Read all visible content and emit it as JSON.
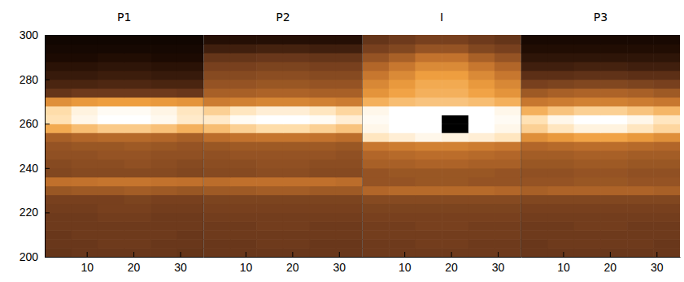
{
  "chart_data": [
    {
      "type": "heatmap",
      "title": "P1",
      "xlim": [
        1,
        35
      ],
      "xticks": [
        10,
        20,
        30
      ],
      "ylim": [
        200,
        300
      ],
      "yticks": [
        200,
        220,
        240,
        260,
        280,
        300
      ],
      "zlim": [
        0,
        100
      ],
      "x_edges": [
        1,
        6.7,
        12.3,
        18,
        23.7,
        29.3,
        35
      ],
      "y_edges": [
        200,
        204,
        208,
        212,
        216,
        220,
        224,
        228,
        232,
        236,
        240,
        244,
        248,
        252,
        256,
        260,
        264,
        268,
        272,
        276,
        280,
        284,
        288,
        292,
        296,
        300
      ],
      "z": [
        [
          26,
          27,
          27,
          27,
          27,
          26
        ],
        [
          27,
          27,
          28,
          28,
          27,
          27
        ],
        [
          27,
          28,
          28,
          28,
          28,
          27
        ],
        [
          28,
          28,
          28,
          28,
          28,
          28
        ],
        [
          28,
          28,
          29,
          29,
          28,
          28
        ],
        [
          29,
          29,
          30,
          30,
          29,
          29
        ],
        [
          30,
          30,
          30,
          31,
          30,
          30
        ],
        [
          37,
          38,
          38,
          39,
          38,
          37
        ],
        [
          45,
          46,
          47,
          47,
          46,
          45
        ],
        [
          32,
          33,
          33,
          33,
          33,
          32
        ],
        [
          33,
          34,
          34,
          35,
          34,
          33
        ],
        [
          35,
          35,
          36,
          36,
          35,
          35
        ],
        [
          36,
          37,
          37,
          38,
          37,
          36
        ],
        [
          40,
          42,
          43,
          43,
          42,
          40
        ],
        [
          68,
          74,
          78,
          78,
          75,
          70
        ],
        [
          86,
          96,
          100,
          100,
          97,
          90
        ],
        [
          84,
          94,
          98,
          98,
          95,
          88
        ],
        [
          58,
          62,
          64,
          64,
          62,
          60
        ],
        [
          26,
          28,
          28,
          28,
          28,
          27
        ],
        [
          20,
          20,
          21,
          21,
          20,
          20
        ],
        [
          16,
          16,
          17,
          17,
          16,
          16
        ],
        [
          13,
          13,
          14,
          14,
          13,
          13
        ],
        [
          10,
          10,
          11,
          11,
          10,
          10
        ],
        [
          8,
          8,
          8,
          8,
          8,
          8
        ],
        [
          6,
          6,
          6,
          6,
          6,
          6
        ]
      ]
    },
    {
      "type": "heatmap",
      "title": "P2",
      "xlim": [
        1,
        35
      ],
      "xticks": [
        10,
        20,
        30
      ],
      "ylim": [
        200,
        300
      ],
      "zlim": [
        0,
        100
      ],
      "x_edges": [
        1,
        6.7,
        12.3,
        18,
        23.7,
        29.3,
        35
      ],
      "y_edges": [
        200,
        204,
        208,
        212,
        216,
        220,
        224,
        228,
        232,
        236,
        240,
        244,
        248,
        252,
        256,
        260,
        264,
        268,
        272,
        276,
        280,
        284,
        288,
        292,
        296,
        300
      ],
      "z": [
        [
          27,
          27,
          27,
          27,
          27,
          27
        ],
        [
          27,
          27,
          28,
          28,
          27,
          27
        ],
        [
          28,
          28,
          28,
          28,
          28,
          28
        ],
        [
          28,
          28,
          29,
          29,
          28,
          28
        ],
        [
          29,
          29,
          29,
          29,
          29,
          29
        ],
        [
          30,
          30,
          30,
          30,
          30,
          30
        ],
        [
          31,
          31,
          31,
          31,
          31,
          31
        ],
        [
          38,
          38,
          39,
          39,
          38,
          38
        ],
        [
          44,
          45,
          45,
          45,
          45,
          44
        ],
        [
          33,
          33,
          34,
          34,
          33,
          33
        ],
        [
          34,
          34,
          35,
          35,
          34,
          34
        ],
        [
          35,
          36,
          36,
          36,
          36,
          35
        ],
        [
          37,
          38,
          38,
          38,
          38,
          37
        ],
        [
          44,
          46,
          47,
          47,
          46,
          44
        ],
        [
          74,
          80,
          84,
          84,
          80,
          76
        ],
        [
          90,
          98,
          100,
          100,
          98,
          92
        ],
        [
          80,
          88,
          92,
          92,
          88,
          82
        ],
        [
          50,
          52,
          54,
          54,
          52,
          50
        ],
        [
          40,
          40,
          41,
          41,
          40,
          40
        ],
        [
          36,
          36,
          37,
          37,
          36,
          36
        ],
        [
          33,
          33,
          34,
          34,
          33,
          33
        ],
        [
          30,
          30,
          31,
          31,
          30,
          30
        ],
        [
          26,
          26,
          27,
          27,
          26,
          26
        ],
        [
          18,
          18,
          19,
          19,
          18,
          18
        ],
        [
          12,
          12,
          12,
          12,
          12,
          12
        ]
      ]
    },
    {
      "type": "heatmap",
      "title": "I",
      "xlim": [
        1,
        35
      ],
      "xticks": [
        10,
        20,
        30
      ],
      "ylim": [
        200,
        300
      ],
      "zlim": [
        0,
        100
      ],
      "x_edges": [
        1,
        6.7,
        12.3,
        18,
        23.7,
        29.3,
        35
      ],
      "y_edges": [
        200,
        204,
        208,
        212,
        216,
        220,
        224,
        228,
        232,
        236,
        240,
        244,
        248,
        252,
        256,
        260,
        264,
        268,
        272,
        276,
        280,
        284,
        288,
        292,
        296,
        300
      ],
      "z": [
        [
          28,
          28,
          28,
          28,
          28,
          28
        ],
        [
          28,
          28,
          29,
          29,
          28,
          28
        ],
        [
          29,
          29,
          29,
          29,
          29,
          29
        ],
        [
          29,
          29,
          30,
          30,
          29,
          29
        ],
        [
          30,
          30,
          30,
          30,
          30,
          30
        ],
        [
          31,
          31,
          31,
          31,
          31,
          31
        ],
        [
          33,
          33,
          33,
          33,
          33,
          33
        ],
        [
          42,
          43,
          43,
          43,
          43,
          42
        ],
        [
          36,
          36,
          37,
          37,
          36,
          36
        ],
        [
          36,
          37,
          37,
          37,
          37,
          36
        ],
        [
          40,
          40,
          41,
          41,
          40,
          40
        ],
        [
          42,
          43,
          44,
          44,
          43,
          42
        ],
        [
          48,
          50,
          52,
          52,
          50,
          48
        ],
        [
          88,
          92,
          96,
          94,
          92,
          88
        ],
        [
          96,
          100,
          100,
          0,
          100,
          96
        ],
        [
          98,
          100,
          100,
          0,
          100,
          98
        ],
        [
          96,
          100,
          100,
          100,
          100,
          96
        ],
        [
          70,
          74,
          76,
          76,
          74,
          70
        ],
        [
          60,
          66,
          70,
          70,
          66,
          60
        ],
        [
          55,
          62,
          68,
          68,
          62,
          55
        ],
        [
          48,
          56,
          64,
          64,
          56,
          48
        ],
        [
          42,
          48,
          56,
          56,
          48,
          42
        ],
        [
          36,
          40,
          46,
          46,
          40,
          36
        ],
        [
          30,
          32,
          36,
          36,
          32,
          30
        ],
        [
          26,
          28,
          30,
          30,
          28,
          26
        ]
      ]
    },
    {
      "type": "heatmap",
      "title": "P3",
      "xlim": [
        1,
        35
      ],
      "xticks": [
        10,
        20,
        30
      ],
      "ylim": [
        200,
        300
      ],
      "zlim": [
        0,
        100
      ],
      "x_edges": [
        1,
        6.7,
        12.3,
        18,
        23.7,
        29.3,
        35
      ],
      "y_edges": [
        200,
        204,
        208,
        212,
        216,
        220,
        224,
        228,
        232,
        236,
        240,
        244,
        248,
        252,
        256,
        260,
        264,
        268,
        272,
        276,
        280,
        284,
        288,
        292,
        296,
        300
      ],
      "z": [
        [
          27,
          27,
          27,
          27,
          27,
          27
        ],
        [
          27,
          28,
          28,
          28,
          28,
          27
        ],
        [
          28,
          28,
          28,
          28,
          28,
          28
        ],
        [
          28,
          28,
          29,
          29,
          28,
          28
        ],
        [
          29,
          29,
          29,
          29,
          29,
          29
        ],
        [
          30,
          30,
          30,
          30,
          30,
          30
        ],
        [
          32,
          32,
          32,
          32,
          32,
          32
        ],
        [
          40,
          41,
          41,
          41,
          41,
          40
        ],
        [
          36,
          36,
          37,
          37,
          36,
          36
        ],
        [
          35,
          35,
          36,
          36,
          35,
          35
        ],
        [
          37,
          37,
          38,
          38,
          37,
          37
        ],
        [
          39,
          39,
          40,
          40,
          39,
          39
        ],
        [
          42,
          43,
          44,
          44,
          43,
          42
        ],
        [
          58,
          62,
          66,
          66,
          62,
          58
        ],
        [
          80,
          88,
          94,
          94,
          88,
          82
        ],
        [
          86,
          96,
          100,
          100,
          96,
          88
        ],
        [
          70,
          76,
          80,
          80,
          76,
          72
        ],
        [
          48,
          50,
          52,
          52,
          50,
          48
        ],
        [
          38,
          40,
          41,
          41,
          40,
          38
        ],
        [
          30,
          31,
          32,
          32,
          31,
          30
        ],
        [
          24,
          24,
          25,
          25,
          24,
          24
        ],
        [
          18,
          18,
          19,
          19,
          18,
          18
        ],
        [
          14,
          14,
          14,
          14,
          14,
          14
        ],
        [
          11,
          11,
          11,
          11,
          11,
          11
        ],
        [
          9,
          9,
          9,
          9,
          9,
          9
        ]
      ]
    }
  ]
}
